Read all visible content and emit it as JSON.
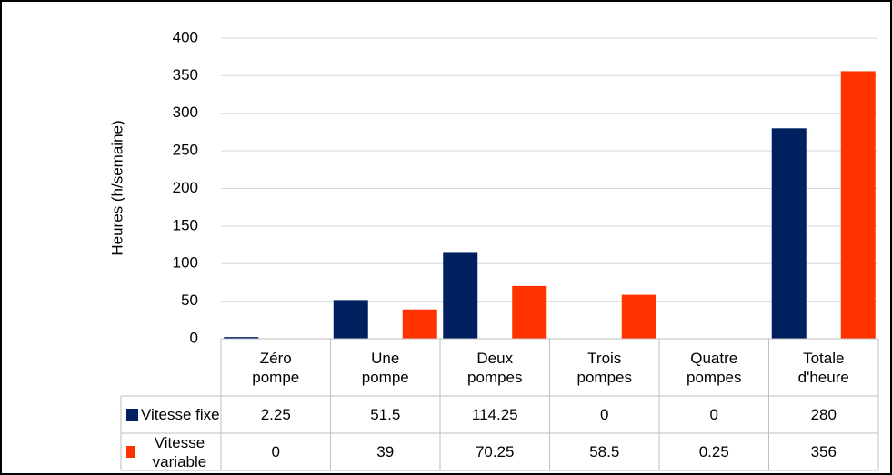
{
  "chart_data": {
    "type": "bar",
    "y_label": "Heures (h/semaine)",
    "categories": [
      "Zéro pompe",
      "Une pompe",
      "Deux pompes",
      "Trois pompes",
      "Quatre pompes",
      "Totale d'heure"
    ],
    "series": [
      {
        "name": "Vitesse fixe",
        "color": "#002060",
        "values": [
          2.25,
          51.5,
          114.25,
          0,
          0,
          280
        ]
      },
      {
        "name": "Vitesse variable",
        "color": "#ff3300",
        "values": [
          0,
          39,
          70.25,
          58.5,
          0.25,
          356
        ]
      }
    ],
    "ylim": [
      0,
      400
    ],
    "yticks": [
      0,
      50,
      100,
      150,
      200,
      250,
      300,
      350,
      400
    ],
    "grid": true,
    "data_table": true
  }
}
